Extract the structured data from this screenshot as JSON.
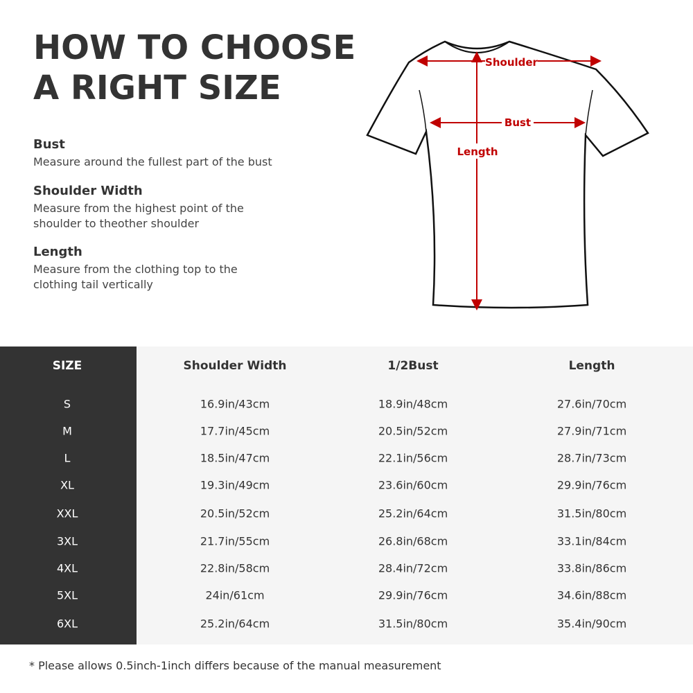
{
  "title_lines": [
    "HOW TO CHOOSE",
    "A RIGHT SIZE"
  ],
  "guide": [
    {
      "heading": "Bust",
      "text": "Measure around the fullest part of the bust"
    },
    {
      "heading": "Shoulder Width",
      "text": "Measure from the highest point of the shoulder to theother shoulder"
    },
    {
      "heading": "Length",
      "text": "Measure from the clothing top to the clothing tail vertically"
    }
  ],
  "diagram": {
    "labels": {
      "shoulder": "Shoulder",
      "bust": "Bust",
      "length": "Length"
    },
    "arrow_color": "#c00000"
  },
  "table": {
    "headers": [
      "SIZE",
      "Shoulder Width",
      "1/2Bust",
      "Length"
    ],
    "rows": [
      [
        "S",
        "16.9in/43cm",
        "18.9in/48cm",
        "27.6in/70cm"
      ],
      [
        "M",
        "17.7in/45cm",
        "20.5in/52cm",
        "27.9in/71cm"
      ],
      [
        "L",
        "18.5in/47cm",
        "22.1in/56cm",
        "28.7in/73cm"
      ],
      [
        "XL",
        "19.3in/49cm",
        "23.6in/60cm",
        "29.9in/76cm"
      ],
      [
        "XXL",
        "20.5in/52cm",
        "25.2in/64cm",
        "31.5in/80cm"
      ],
      [
        "3XL",
        "21.7in/55cm",
        "26.8in/68cm",
        "33.1in/84cm"
      ],
      [
        "4XL",
        "22.8in/58cm",
        "28.4in/72cm",
        "33.8in/86cm"
      ],
      [
        "5XL",
        "24in/61cm",
        "29.9in/76cm",
        "34.6in/88cm"
      ],
      [
        "6XL",
        "25.2in/64cm",
        "31.5in/80cm",
        "35.4in/90cm"
      ]
    ]
  },
  "note": "* Please allows 0.5inch-1inch differs because of the  manual measurement"
}
